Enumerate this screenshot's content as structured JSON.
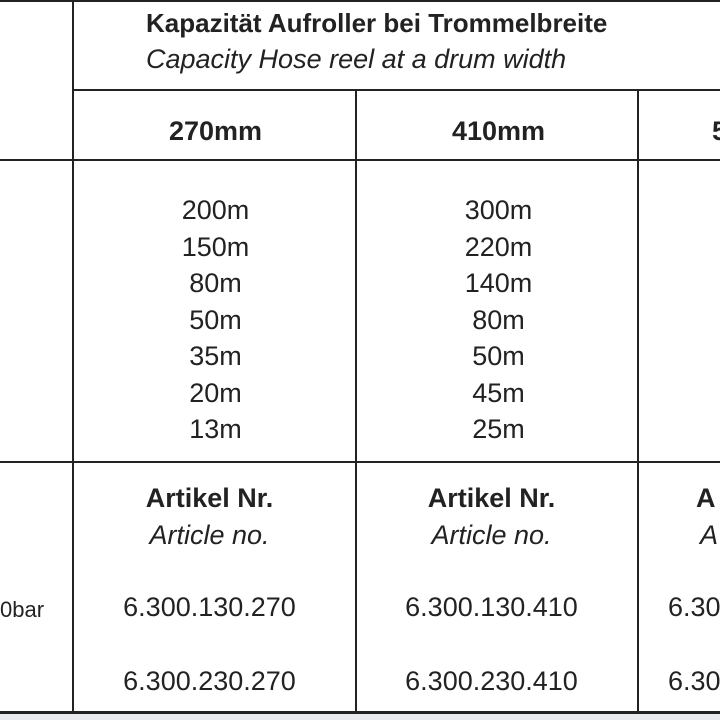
{
  "header": {
    "title_de": "Kapazität Aufroller bei Trommelbreite",
    "title_en": "Capacity Hose reel at a drum width"
  },
  "columns": [
    {
      "width": "270mm",
      "capacities": [
        "200m",
        "150m",
        "80m",
        "50m",
        "35m",
        "20m",
        "13m"
      ],
      "article_label_de": "Artikel Nr.",
      "article_label_en": "Article no.",
      "articles": [
        "6.300.130.270",
        "6.300.230.270"
      ]
    },
    {
      "width": "410mm",
      "capacities": [
        "300m",
        "220m",
        "140m",
        "80m",
        "50m",
        "45m",
        "25m"
      ],
      "article_label_de": "Artikel Nr.",
      "article_label_en": "Article no.",
      "articles": [
        "6.300.130.410",
        "6.300.230.410"
      ]
    },
    {
      "width": "5",
      "article_label_de": "A",
      "article_label_en": "A",
      "articles": [
        "6.30",
        "6.30"
      ]
    }
  ],
  "row_labels": [
    "0bar"
  ]
}
